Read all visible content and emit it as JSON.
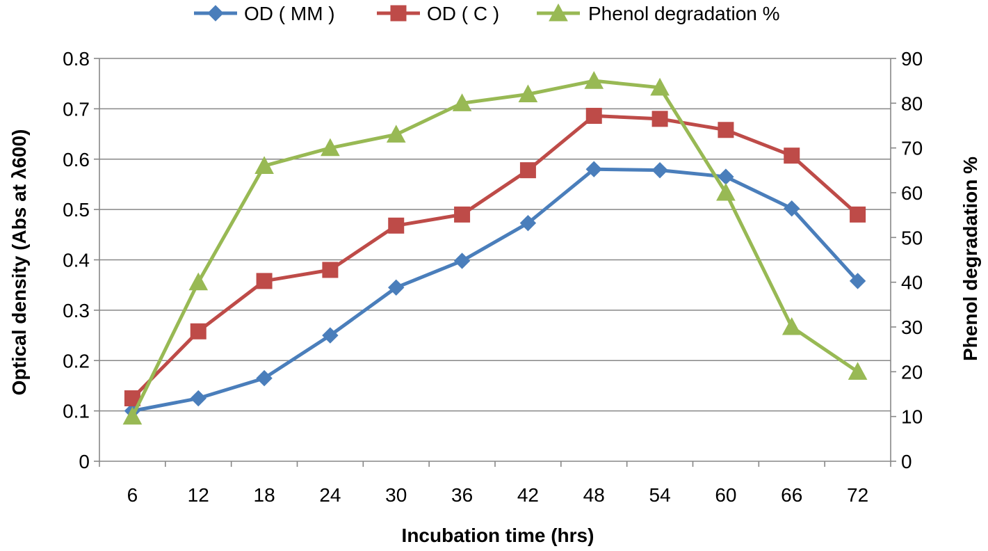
{
  "chart_data": {
    "type": "line",
    "title": "",
    "categories": [
      "6",
      "12",
      "18",
      "24",
      "30",
      "36",
      "42",
      "48",
      "54",
      "60",
      "66",
      "72"
    ],
    "xlabel": "Incubation time (hrs)",
    "ylabel": "Optical density (Abs  at λ600)",
    "y2label": "Phenol degradation %",
    "ylim": [
      0,
      0.8
    ],
    "y2lim": [
      0,
      90
    ],
    "yticks": [
      "0",
      "0.1",
      "0.2",
      "0.3",
      "0.4",
      "0.5",
      "0.6",
      "0.7",
      "0.8"
    ],
    "y2ticks": [
      "0",
      "10",
      "20",
      "30",
      "40",
      "50",
      "60",
      "70",
      "80",
      "90"
    ],
    "legend_position": "top",
    "grid": true,
    "series": [
      {
        "name": "OD ( MM )",
        "axis": "left",
        "marker": "diamond",
        "color": "#4a7ebb",
        "values": [
          0.1,
          0.125,
          0.165,
          0.25,
          0.345,
          0.398,
          0.473,
          0.58,
          0.578,
          0.565,
          0.502,
          0.358
        ]
      },
      {
        "name": "OD ( C )",
        "axis": "left",
        "marker": "square",
        "color": "#be4b48",
        "values": [
          0.125,
          0.258,
          0.358,
          0.38,
          0.468,
          0.49,
          0.578,
          0.686,
          0.68,
          0.658,
          0.607,
          0.49
        ]
      },
      {
        "name": "Phenol degradation %",
        "axis": "right",
        "marker": "triangle",
        "color": "#98b954",
        "values": [
          10,
          40,
          66,
          70,
          73,
          80,
          82,
          85,
          83.5,
          60,
          30,
          20
        ]
      }
    ]
  }
}
